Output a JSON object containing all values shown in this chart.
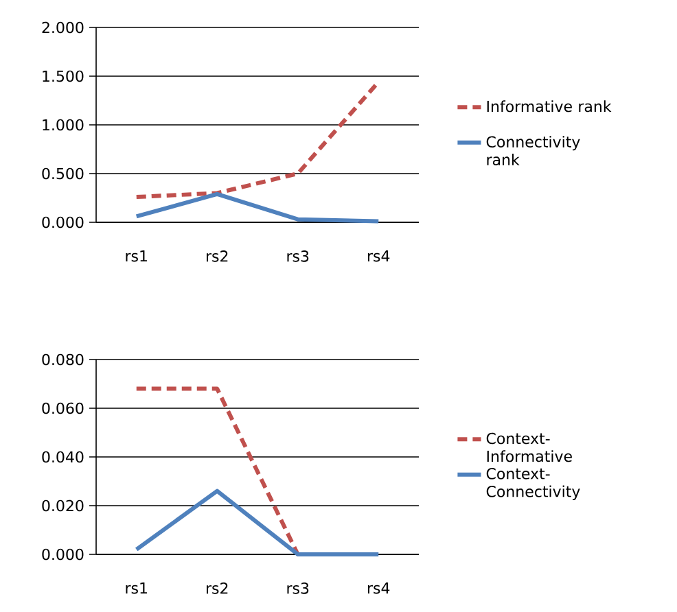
{
  "chart_data": [
    {
      "type": "line",
      "categories": [
        "rs1",
        "rs2",
        "rs3",
        "rs4"
      ],
      "ylim": [
        0,
        2
      ],
      "yticks": [
        {
          "value": 0,
          "label": "0.000"
        },
        {
          "value": 0.5,
          "label": "0.500"
        },
        {
          "value": 1,
          "label": "1.000"
        },
        {
          "value": 1.5,
          "label": "1.500"
        },
        {
          "value": 2,
          "label": "2.000"
        }
      ],
      "grid": "y",
      "legend": "right",
      "marker": "none",
      "series": [
        {
          "name": "Informative rank",
          "color": "#c0504d",
          "line_style": "dashed",
          "values": [
            0.26,
            0.3,
            0.5,
            1.44
          ]
        },
        {
          "name": "Connectivity rank",
          "color": "#4f81bd",
          "line_style": "solid",
          "values": [
            0.06,
            0.29,
            0.03,
            0.01
          ]
        }
      ]
    },
    {
      "type": "line",
      "categories": [
        "rs1",
        "rs2",
        "rs3",
        "rs4"
      ],
      "ylim": [
        0,
        0.08
      ],
      "yticks": [
        {
          "value": 0,
          "label": "0.000"
        },
        {
          "value": 0.02,
          "label": "0.020"
        },
        {
          "value": 0.04,
          "label": "0.040"
        },
        {
          "value": 0.06,
          "label": "0.060"
        },
        {
          "value": 0.08,
          "label": "0.080"
        }
      ],
      "grid": "y",
      "legend": "right",
      "marker": "none",
      "series": [
        {
          "name": "Context-Informative",
          "color": "#c0504d",
          "line_style": "dashed",
          "values": [
            0.068,
            0.068,
            0,
            0
          ]
        },
        {
          "name": "Context-Connectivity",
          "color": "#4f81bd",
          "line_style": "solid",
          "values": [
            0.002,
            0.026,
            0,
            0
          ]
        }
      ]
    }
  ]
}
